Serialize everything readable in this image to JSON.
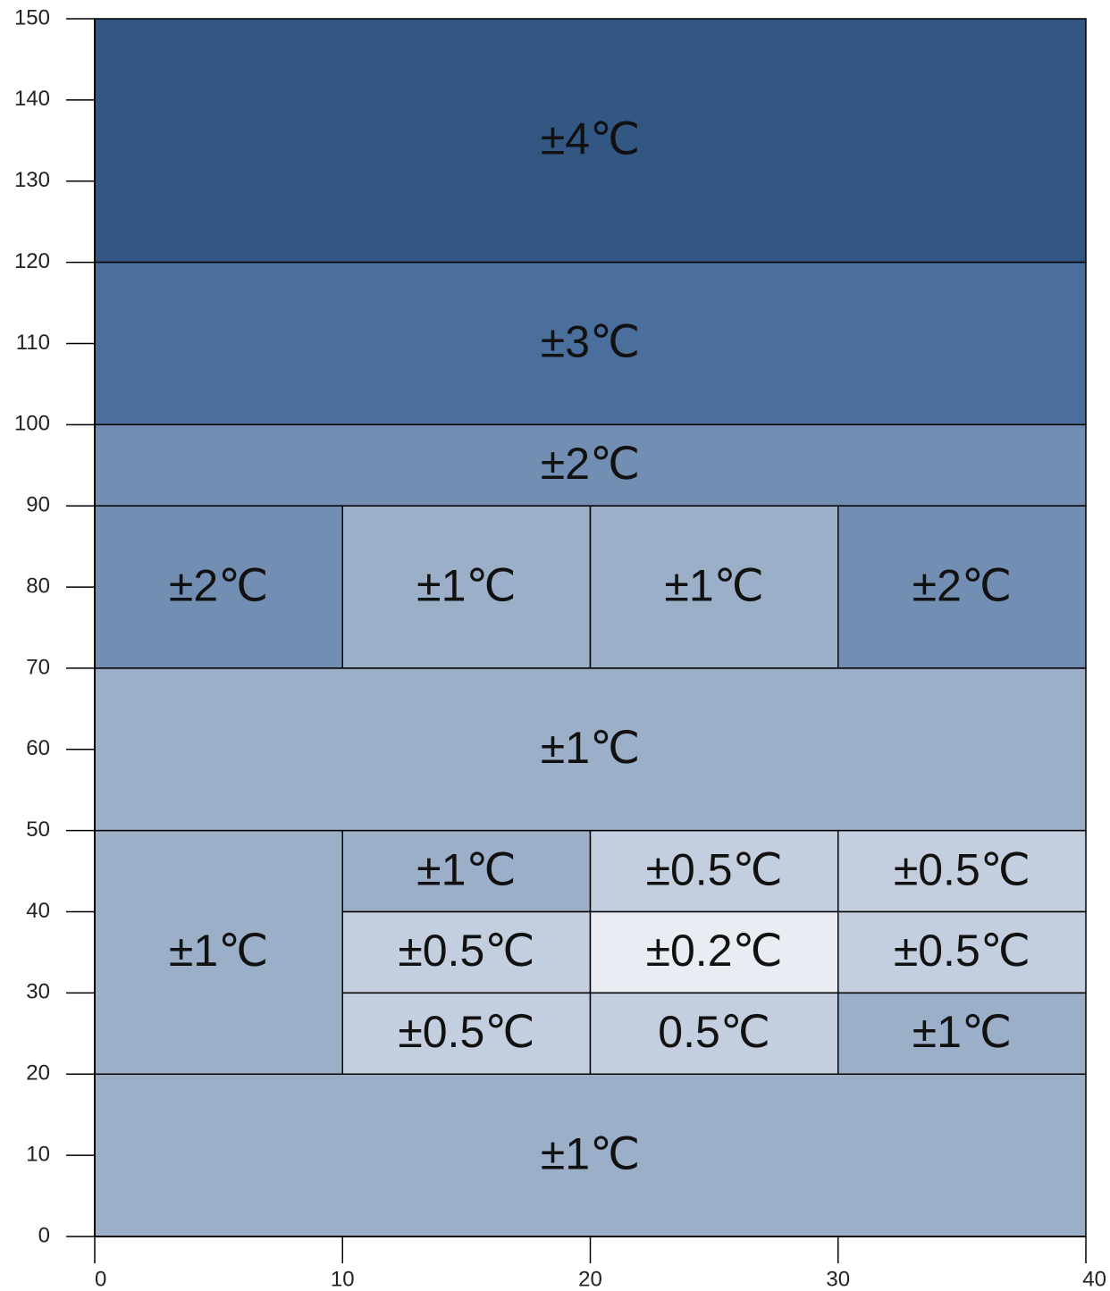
{
  "chart_data": {
    "type": "heatmap",
    "title": "",
    "xlabel": "",
    "ylabel": "",
    "xlim": [
      0,
      40
    ],
    "ylim": [
      0,
      150
    ],
    "x_ticks": [
      "0",
      "10",
      "20",
      "30",
      "40"
    ],
    "y_ticks": [
      "0",
      "10",
      "20",
      "30",
      "40",
      "50",
      "60",
      "70",
      "80",
      "90",
      "100",
      "110",
      "120",
      "130",
      "140",
      "150"
    ],
    "grid": false,
    "legend": "none",
    "colors": {
      "4": "#325783",
      "3": "#4a6f9c",
      "2": "#728eb2",
      "1": "#9cafc8",
      "0.5": "#c3cfdf",
      "0.2": "#e9edf3"
    },
    "cells": [
      {
        "x0": 0,
        "x1": 40,
        "y0": 120,
        "y1": 150,
        "tolerance": 4,
        "label": "±4℃"
      },
      {
        "x0": 0,
        "x1": 40,
        "y0": 100,
        "y1": 120,
        "tolerance": 3,
        "label": "±3℃"
      },
      {
        "x0": 0,
        "x1": 40,
        "y0": 90,
        "y1": 100,
        "tolerance": 2,
        "label": "±2℃"
      },
      {
        "x0": 0,
        "x1": 10,
        "y0": 70,
        "y1": 90,
        "tolerance": 2,
        "label": "±2℃"
      },
      {
        "x0": 10,
        "x1": 20,
        "y0": 70,
        "y1": 90,
        "tolerance": 1,
        "label": "±1℃"
      },
      {
        "x0": 20,
        "x1": 30,
        "y0": 70,
        "y1": 90,
        "tolerance": 1,
        "label": "±1℃"
      },
      {
        "x0": 30,
        "x1": 40,
        "y0": 70,
        "y1": 90,
        "tolerance": 2,
        "label": "±2℃"
      },
      {
        "x0": 0,
        "x1": 40,
        "y0": 50,
        "y1": 70,
        "tolerance": 1,
        "label": "±1℃"
      },
      {
        "x0": 0,
        "x1": 10,
        "y0": 20,
        "y1": 50,
        "tolerance": 1,
        "label": "±1℃"
      },
      {
        "x0": 10,
        "x1": 20,
        "y0": 40,
        "y1": 50,
        "tolerance": 1,
        "label": "±1℃"
      },
      {
        "x0": 20,
        "x1": 30,
        "y0": 40,
        "y1": 50,
        "tolerance": 0.5,
        "label": "±0.5℃"
      },
      {
        "x0": 30,
        "x1": 40,
        "y0": 40,
        "y1": 50,
        "tolerance": 0.5,
        "label": "±0.5℃"
      },
      {
        "x0": 10,
        "x1": 20,
        "y0": 30,
        "y1": 40,
        "tolerance": 0.5,
        "label": "±0.5℃"
      },
      {
        "x0": 20,
        "x1": 30,
        "y0": 30,
        "y1": 40,
        "tolerance": 0.2,
        "label": "±0.2℃"
      },
      {
        "x0": 30,
        "x1": 40,
        "y0": 30,
        "y1": 40,
        "tolerance": 0.5,
        "label": "±0.5℃"
      },
      {
        "x0": 10,
        "x1": 20,
        "y0": 20,
        "y1": 30,
        "tolerance": 0.5,
        "label": "±0.5℃"
      },
      {
        "x0": 20,
        "x1": 30,
        "y0": 20,
        "y1": 30,
        "tolerance": 0.5,
        "label": "0.5℃"
      },
      {
        "x0": 30,
        "x1": 40,
        "y0": 20,
        "y1": 30,
        "tolerance": 1,
        "label": "±1℃"
      },
      {
        "x0": 0,
        "x1": 40,
        "y0": 0,
        "y1": 20,
        "tolerance": 1,
        "label": "±1℃"
      }
    ]
  }
}
